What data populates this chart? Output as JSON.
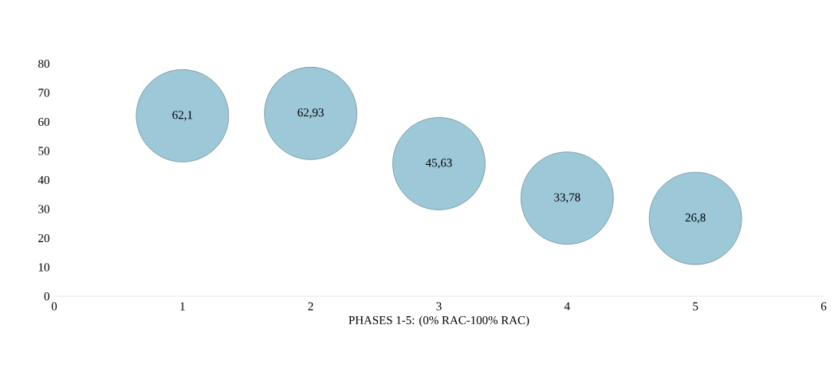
{
  "chart_data": {
    "type": "bubble",
    "xlabel": "PHASES 1-5: (0% RAC-100% RAC)",
    "x": [
      1,
      2,
      3,
      4,
      5
    ],
    "values": [
      62.1,
      62.93,
      45.63,
      33.78,
      26.8
    ],
    "sizes": [
      1,
      1,
      1,
      1,
      1
    ],
    "value_labels": [
      "62,1",
      "62,93",
      "45,63",
      "33,78",
      "26,8"
    ],
    "color": "#9cc8d8",
    "xlim": [
      0,
      6
    ],
    "xticks": [
      0,
      1,
      2,
      3,
      4,
      5,
      6
    ],
    "ylim": [
      0,
      80
    ],
    "yticks": [
      0,
      10,
      20,
      30,
      40,
      50,
      60,
      70,
      80
    ]
  }
}
